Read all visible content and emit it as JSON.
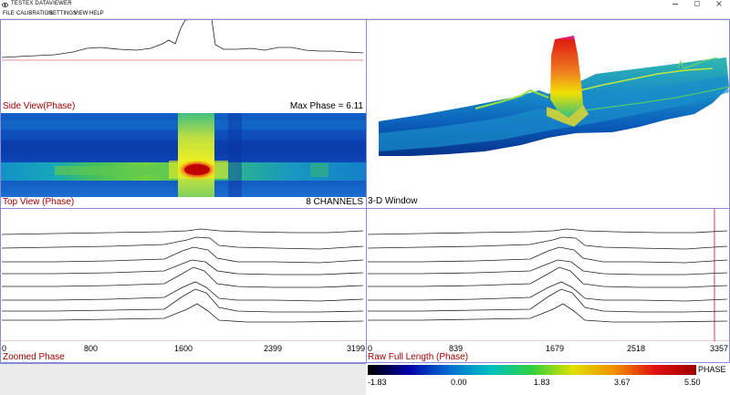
{
  "window": {
    "title": "TESTEX DATAVIEWER",
    "minimize_icon": "minimize-icon",
    "maximize_icon": "maximize-icon",
    "close_icon": "close-icon"
  },
  "menu": [
    "FILE",
    "CALIBRATION",
    "SETTINGS",
    "VIEW",
    "HELP"
  ],
  "side_view": {
    "label": "Side View(Phase)",
    "max_phase": "Max Phase = 6.11"
  },
  "top_view": {
    "label": "Top View (Phase)",
    "channels": "8 CHANNELS"
  },
  "window3d": {
    "label": "3-D Window"
  },
  "zoomed": {
    "label": "Zoomed Phase",
    "ticks": [
      "0",
      "800",
      "1600",
      "2399",
      "3199"
    ]
  },
  "raw": {
    "label": "Raw Full Length (Phase)",
    "ticks": [
      "0",
      "839",
      "1679",
      "2518",
      "3357"
    ]
  },
  "colorbar": {
    "label": "PHASE",
    "ticks": [
      "-1.83",
      "0.00",
      "1.83",
      "3.67",
      "5.50"
    ],
    "colors": [
      "#000000",
      "#0000aa",
      "#0070d0",
      "#00c0c0",
      "#30d040",
      "#e0e000",
      "#f09000",
      "#e01010",
      "#a00000"
    ]
  }
}
